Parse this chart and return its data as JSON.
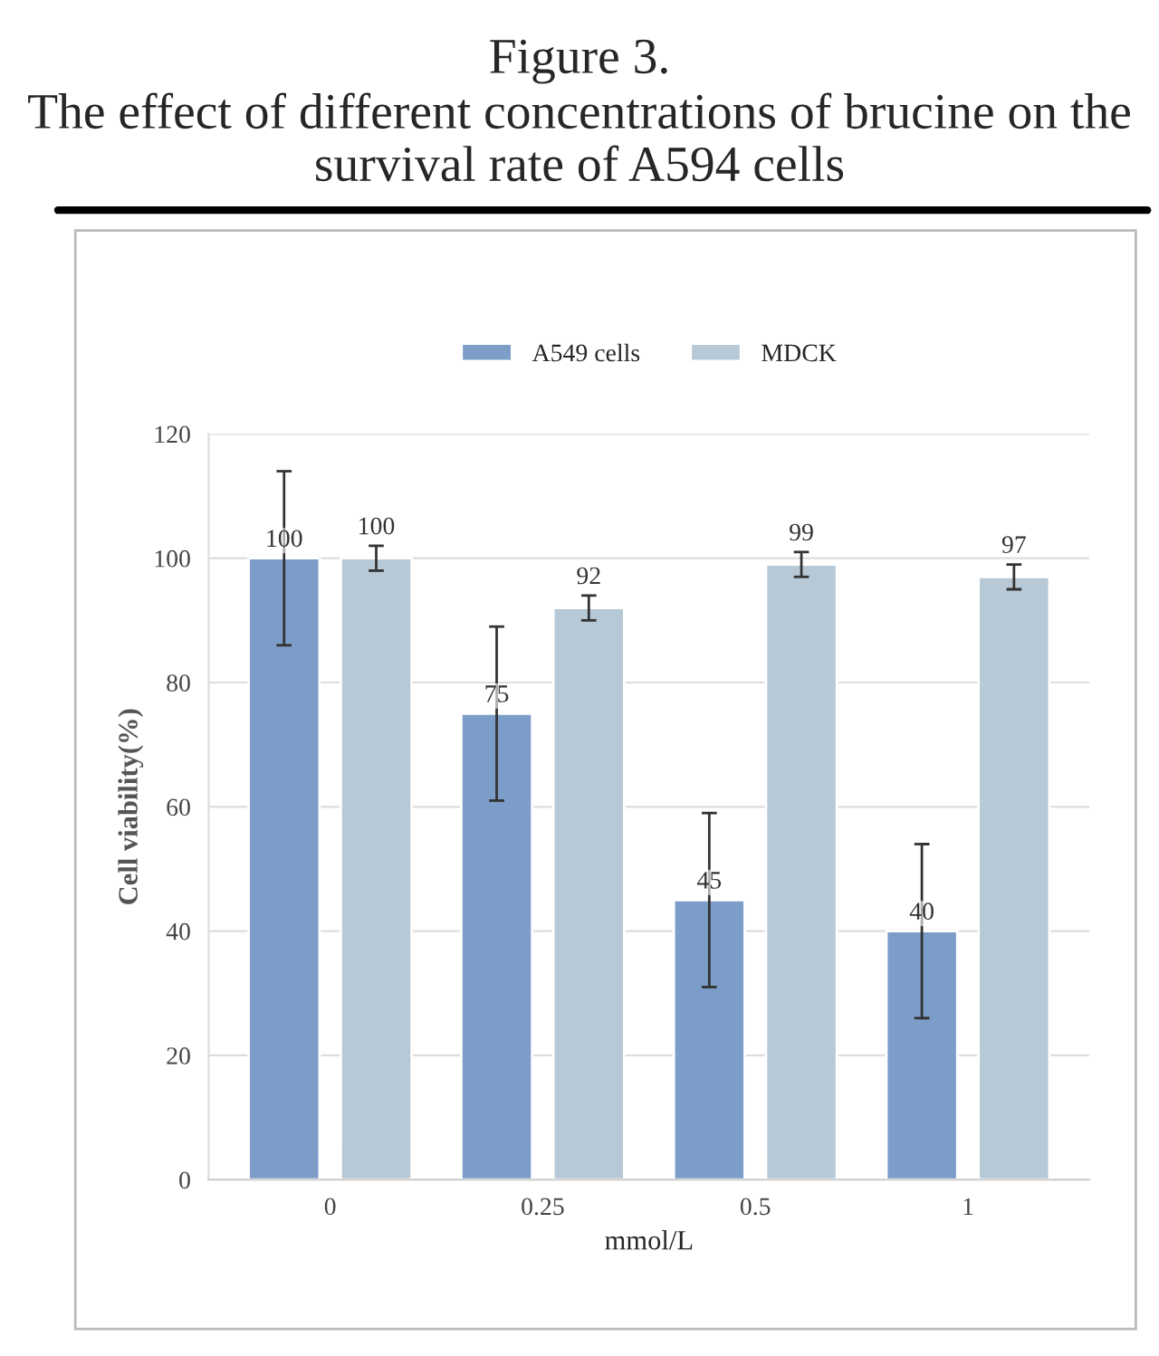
{
  "chart_data": {
    "type": "bar",
    "title": "Figure 3.",
    "subtitle": "The effect of different concentrations of brucine on the survival rate of A594 cells",
    "xlabel": "mmol/L",
    "ylabel": "Cell viability(%)",
    "categories": [
      "0",
      "0.25",
      "0.5",
      "1"
    ],
    "series": [
      {
        "name": "A549 cells",
        "color": "#7b9dc8",
        "values": [
          100,
          75,
          45,
          40
        ],
        "errors": [
          14,
          14,
          14,
          14
        ]
      },
      {
        "name": "MDCK",
        "color": "#b7c9d7",
        "values": [
          100,
          92,
          99,
          97
        ],
        "errors": [
          2,
          2,
          2,
          2
        ]
      }
    ],
    "ylim": [
      0,
      120
    ],
    "yticks": [
      0,
      20,
      40,
      60,
      80,
      100,
      120
    ],
    "grid": "y",
    "legend": "top",
    "data_labels": true
  }
}
